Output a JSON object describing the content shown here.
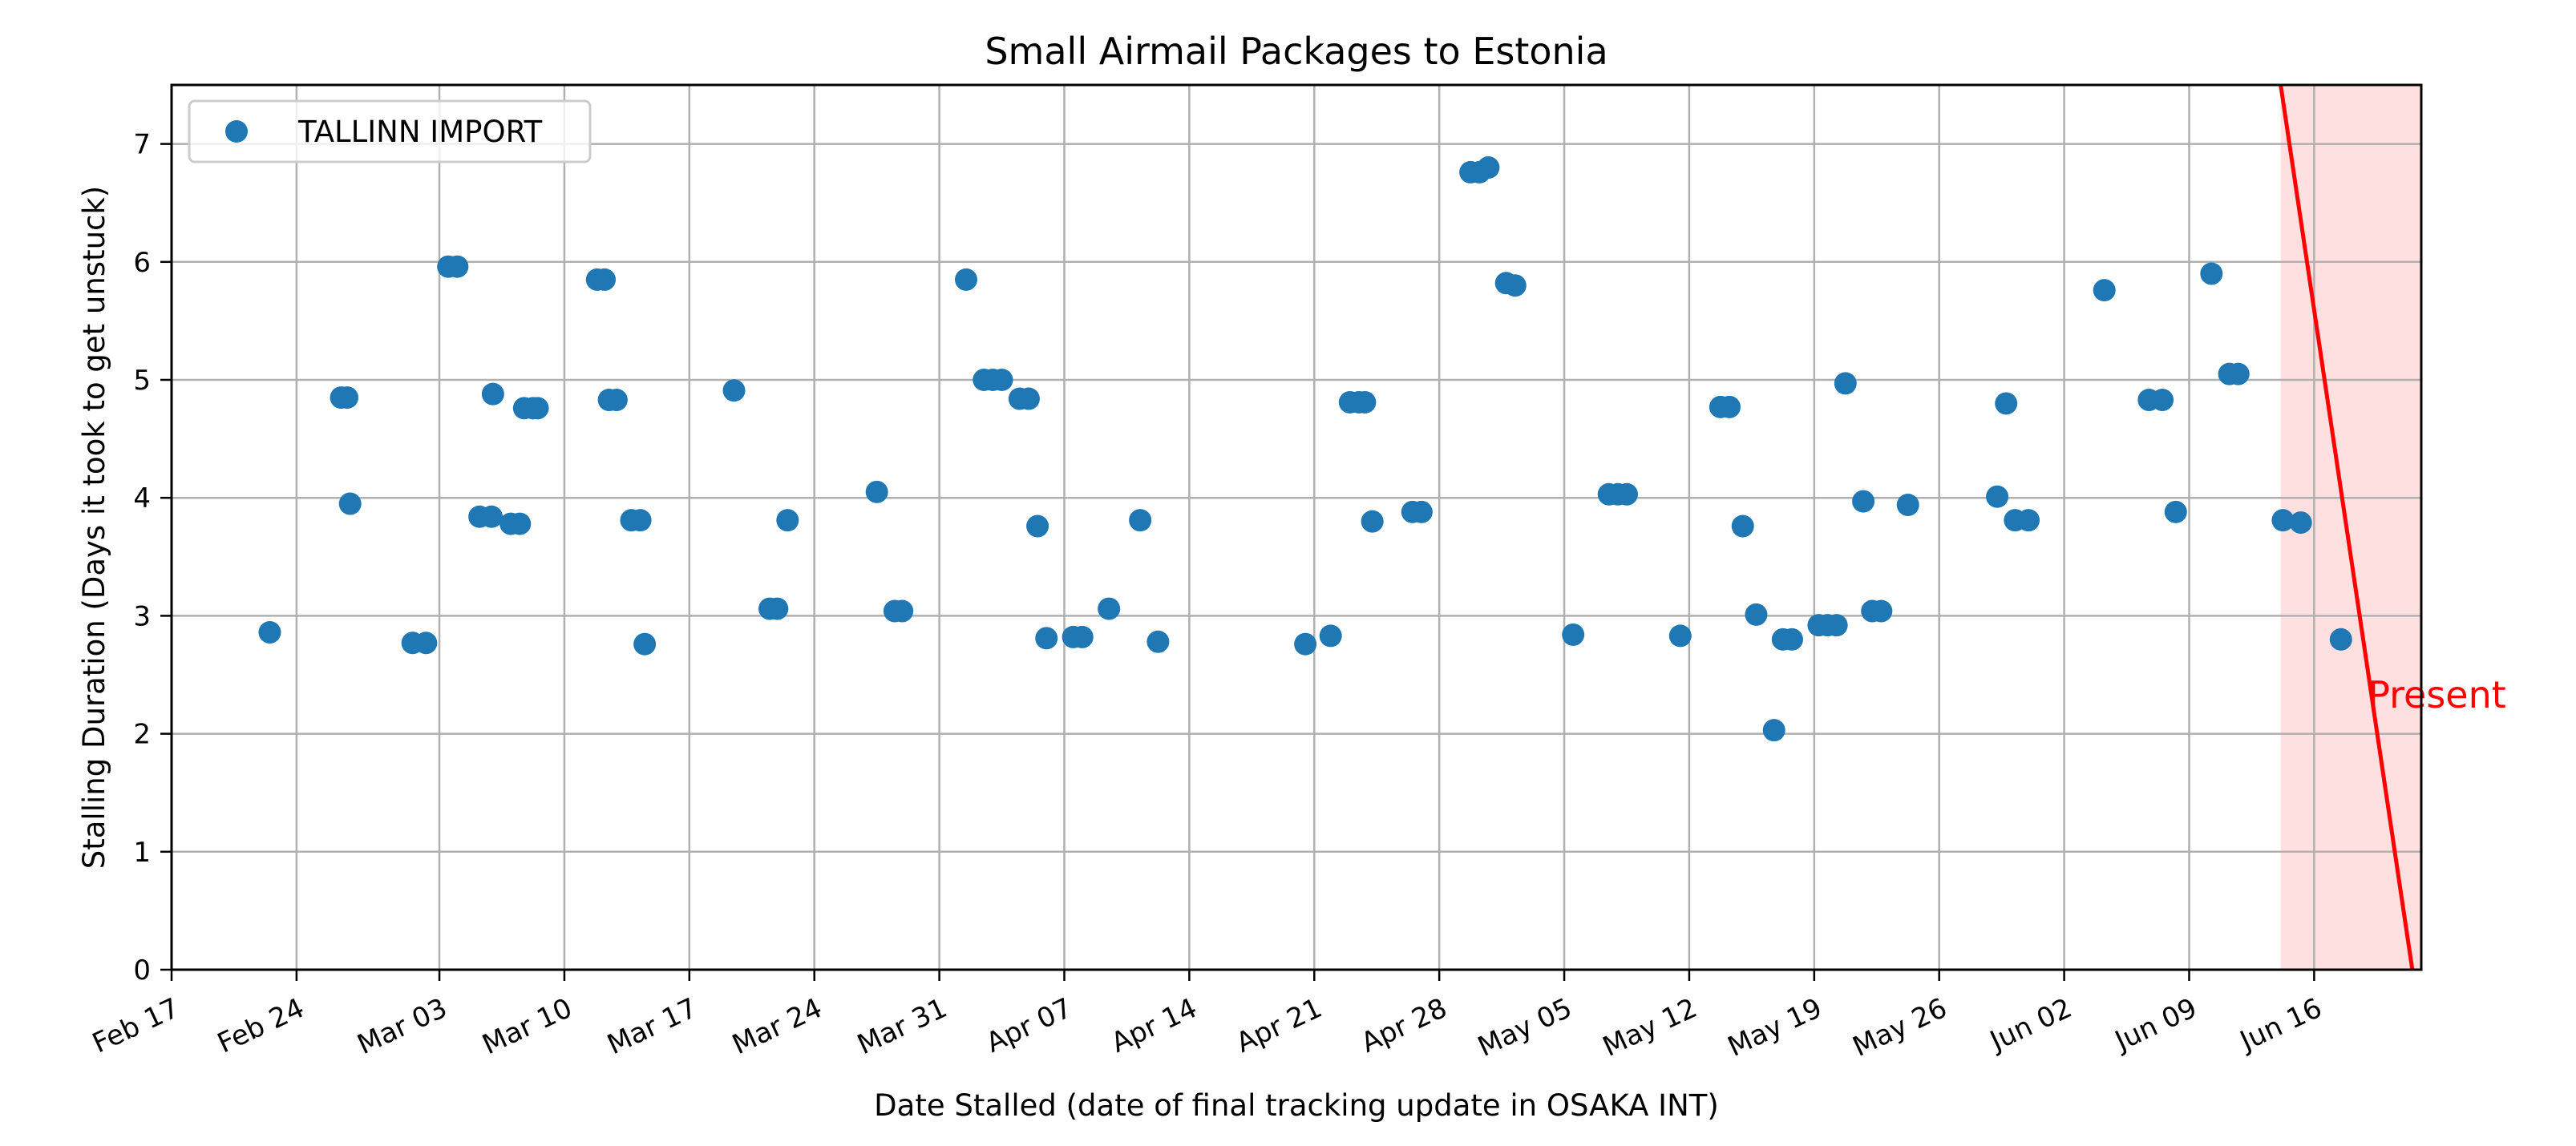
{
  "chart_data": {
    "type": "scatter",
    "title": "Small Airmail Packages to Estonia",
    "xlabel": "Date Stalled (date of final tracking update in OSAKA INT)",
    "ylabel": "Stalling Duration (Days it took to get unstuck)",
    "xlim": [
      "2024-02-17",
      "2024-06-22"
    ],
    "ylim": [
      0,
      7.5
    ],
    "x_ticks": [
      "2024-02-17",
      "2024-02-24",
      "2024-03-03",
      "2024-03-10",
      "2024-03-17",
      "2024-03-24",
      "2024-03-31",
      "2024-04-07",
      "2024-04-14",
      "2024-04-21",
      "2024-04-28",
      "2024-05-05",
      "2024-05-12",
      "2024-05-19",
      "2024-05-26",
      "2024-06-02",
      "2024-06-09",
      "2024-06-16"
    ],
    "x_tick_labels": [
      "Feb 17",
      "Feb 24",
      "Mar 03",
      "Mar 10",
      "Mar 17",
      "Mar 24",
      "Mar 31",
      "Apr 07",
      "Apr 14",
      "Apr 21",
      "Apr 28",
      "May 05",
      "May 12",
      "May 19",
      "May 26",
      "Jun 02",
      "Jun 09",
      "Jun 16"
    ],
    "y_ticks": [
      0,
      1,
      2,
      3,
      4,
      5,
      6,
      7
    ],
    "y_tick_labels": [
      "0",
      "1",
      "2",
      "3",
      "4",
      "5",
      "6",
      "7"
    ],
    "grid": true,
    "legend_position": "top-left",
    "series": [
      {
        "name": "TALLINN IMPORT",
        "color": "#1f77b4",
        "points": [
          [
            "2024-02-22T12:00",
            2.86
          ],
          [
            "2024-02-26T12:00",
            4.85
          ],
          [
            "2024-02-26T20:00",
            4.85
          ],
          [
            "2024-02-27T00:00",
            3.95
          ],
          [
            "2024-03-01T12:00",
            2.77
          ],
          [
            "2024-03-02T06:00",
            2.77
          ],
          [
            "2024-03-03T12:00",
            5.96
          ],
          [
            "2024-03-04T00:00",
            5.96
          ],
          [
            "2024-03-05T06:00",
            3.84
          ],
          [
            "2024-03-05T22:00",
            3.84
          ],
          [
            "2024-03-06T00:00",
            4.88
          ],
          [
            "2024-03-07T00:00",
            3.78
          ],
          [
            "2024-03-07T12:00",
            3.78
          ],
          [
            "2024-03-07T18:00",
            4.76
          ],
          [
            "2024-03-08T06:00",
            4.76
          ],
          [
            "2024-03-08T12:00",
            4.76
          ],
          [
            "2024-03-11T20:00",
            5.85
          ],
          [
            "2024-03-12T06:00",
            5.85
          ],
          [
            "2024-03-12T12:00",
            4.83
          ],
          [
            "2024-03-12T22:00",
            4.83
          ],
          [
            "2024-03-13T18:00",
            3.81
          ],
          [
            "2024-03-14T06:00",
            3.81
          ],
          [
            "2024-03-14T12:00",
            2.76
          ],
          [
            "2024-03-19T12:00",
            4.91
          ],
          [
            "2024-03-21T12:00",
            3.06
          ],
          [
            "2024-03-21T22:00",
            3.06
          ],
          [
            "2024-03-22T12:00",
            3.81
          ],
          [
            "2024-03-27T12:00",
            4.05
          ],
          [
            "2024-03-28T12:00",
            3.04
          ],
          [
            "2024-03-28T22:00",
            3.04
          ],
          [
            "2024-04-01T12:00",
            5.85
          ],
          [
            "2024-04-02T12:00",
            5.0
          ],
          [
            "2024-04-03T00:00",
            5.0
          ],
          [
            "2024-04-03T12:00",
            5.0
          ],
          [
            "2024-04-04T12:00",
            4.84
          ],
          [
            "2024-04-05T00:00",
            4.84
          ],
          [
            "2024-04-05T12:00",
            3.76
          ],
          [
            "2024-04-06T00:00",
            2.81
          ],
          [
            "2024-04-07T12:00",
            2.82
          ],
          [
            "2024-04-08T00:00",
            2.82
          ],
          [
            "2024-04-09T12:00",
            3.06
          ],
          [
            "2024-04-11T06:00",
            3.81
          ],
          [
            "2024-04-12T06:00",
            2.78
          ],
          [
            "2024-04-20T12:00",
            2.76
          ],
          [
            "2024-04-21T22:00",
            2.83
          ],
          [
            "2024-04-23T00:00",
            4.81
          ],
          [
            "2024-04-23T12:00",
            4.81
          ],
          [
            "2024-04-23T20:00",
            4.81
          ],
          [
            "2024-04-24T06:00",
            3.8
          ],
          [
            "2024-04-26T12:00",
            3.88
          ],
          [
            "2024-04-27T00:00",
            3.88
          ],
          [
            "2024-04-29T18:00",
            6.76
          ],
          [
            "2024-04-30T06:00",
            6.76
          ],
          [
            "2024-04-30T18:00",
            6.8
          ],
          [
            "2024-05-01T18:00",
            5.82
          ],
          [
            "2024-05-02T06:00",
            5.8
          ],
          [
            "2024-05-05T12:00",
            2.84
          ],
          [
            "2024-05-07T12:00",
            4.03
          ],
          [
            "2024-05-08T00:00",
            4.03
          ],
          [
            "2024-05-08T12:00",
            4.03
          ],
          [
            "2024-05-11T12:00",
            2.83
          ],
          [
            "2024-05-13T18:00",
            4.77
          ],
          [
            "2024-05-14T06:00",
            4.77
          ],
          [
            "2024-05-15T00:00",
            3.76
          ],
          [
            "2024-05-15T18:00",
            3.01
          ],
          [
            "2024-05-16T18:00",
            2.03
          ],
          [
            "2024-05-17T06:00",
            2.8
          ],
          [
            "2024-05-17T18:00",
            2.8
          ],
          [
            "2024-05-19T06:00",
            2.92
          ],
          [
            "2024-05-19T18:00",
            2.92
          ],
          [
            "2024-05-20T06:00",
            2.92
          ],
          [
            "2024-05-20T18:00",
            4.97
          ],
          [
            "2024-05-21T18:00",
            3.97
          ],
          [
            "2024-05-22T06:00",
            3.04
          ],
          [
            "2024-05-22T18:00",
            3.04
          ],
          [
            "2024-05-24T06:00",
            3.94
          ],
          [
            "2024-05-29T06:00",
            4.01
          ],
          [
            "2024-05-29T18:00",
            4.8
          ],
          [
            "2024-05-30T06:00",
            3.81
          ],
          [
            "2024-05-31T00:00",
            3.81
          ],
          [
            "2024-06-04T06:00",
            5.76
          ],
          [
            "2024-06-06T18:00",
            4.83
          ],
          [
            "2024-06-07T12:00",
            4.83
          ],
          [
            "2024-06-08T06:00",
            3.88
          ],
          [
            "2024-06-10T06:00",
            5.9
          ],
          [
            "2024-06-11T06:00",
            5.05
          ],
          [
            "2024-06-11T18:00",
            5.05
          ],
          [
            "2024-06-14T06:00",
            3.81
          ],
          [
            "2024-06-15T06:00",
            3.79
          ],
          [
            "2024-06-17T12:00",
            2.8
          ]
        ]
      }
    ],
    "annotations": [
      {
        "text": "Present",
        "color": "#ff0000",
        "line_start": [
          "2024-06-14T03:00",
          7.5
        ],
        "line_end": [
          "2024-06-21T12:00",
          0
        ],
        "shade_from": "2024-06-14T03:00",
        "shade_to": "2024-06-22T12:00",
        "shade_color": "#ffe0e0",
        "label_at": [
          "2024-06-19T00:00",
          2.33
        ]
      }
    ]
  }
}
